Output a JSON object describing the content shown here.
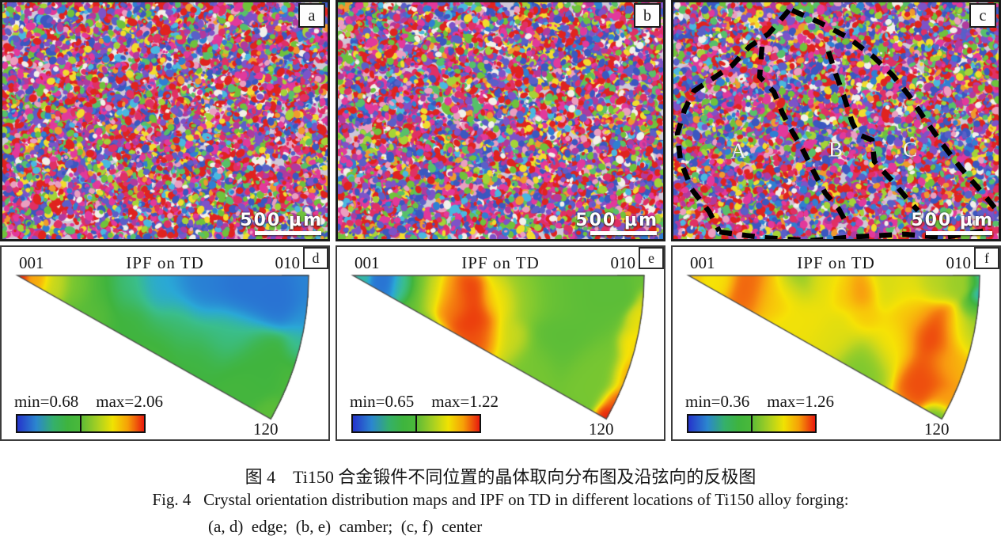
{
  "caption": {
    "line1_zh": "图 4　Ti150 合金锻件不同位置的晶体取向分布图及沿弦向的反极图",
    "line2_en": "Fig. 4   Crystal orientation distribution maps and IPF on TD in different locations of Ti150 alloy forging:",
    "line3_en": "(a, d)  edge;  (b, e)  camber;  (c, f)  center"
  },
  "panels": {
    "ebsd": [
      {
        "label": "a",
        "location": "edge",
        "scale_bar": "500 μm"
      },
      {
        "label": "b",
        "location": "camber",
        "scale_bar": "500 μm"
      },
      {
        "label": "c",
        "location": "center",
        "scale_bar": "500 μm",
        "regions": [
          "A",
          "B",
          "C"
        ]
      }
    ],
    "ipf": [
      {
        "label": "d",
        "title": "IPF on TD",
        "corner_top_left": "001",
        "corner_top_right": "010",
        "corner_bottom": "120",
        "min_label": "min=0.68",
        "max_label": "max=2.06",
        "min": 0.68,
        "max": 2.06
      },
      {
        "label": "e",
        "title": "IPF on TD",
        "corner_top_left": "001",
        "corner_top_right": "010",
        "corner_bottom": "120",
        "min_label": "min=0.65",
        "max_label": "max=1.22",
        "min": 0.65,
        "max": 1.22
      },
      {
        "label": "f",
        "title": "IPF on TD",
        "corner_top_left": "001",
        "corner_top_right": "010",
        "corner_bottom": "120",
        "min_label": "min=0.36",
        "max_label": "max=1.26",
        "min": 0.36,
        "max": 1.26
      }
    ]
  },
  "colorbar": {
    "left_gradient": [
      "#2534cb",
      "#2b86cf",
      "#3eb43e"
    ],
    "right_gradient": [
      "#5ebb36",
      "#f0e202",
      "#e91a0e"
    ]
  }
}
